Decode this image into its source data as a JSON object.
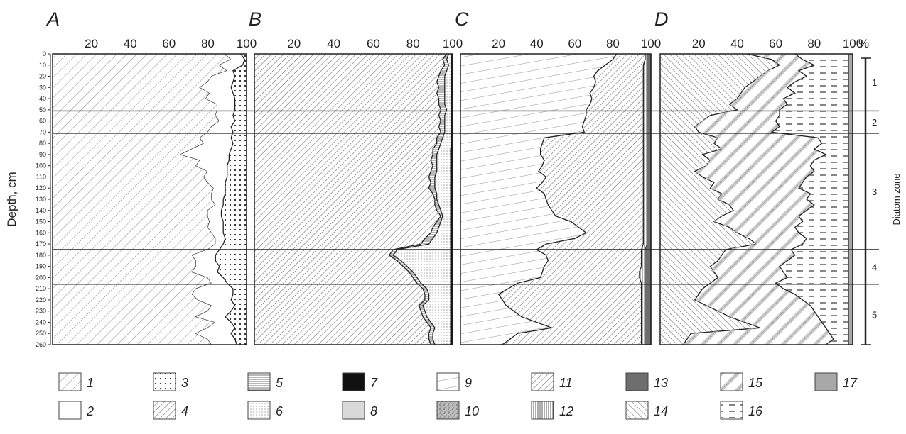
{
  "chart_data": {
    "type": "area",
    "subtype": "stratigraphic stacked-percentage diagram",
    "ylabel": "Depth, cm",
    "y_ticks": [
      "0",
      "10",
      "20",
      "30",
      "40",
      "50",
      "60",
      "70",
      "80",
      "90",
      "100",
      "110",
      "120",
      "130",
      "140",
      "150",
      "160",
      "170",
      "180",
      "190",
      "200",
      "210",
      "220",
      "230",
      "240",
      "250",
      "260"
    ],
    "ylim": [
      0,
      260
    ],
    "xlim": [
      0,
      100
    ],
    "x_ticks": [
      "20",
      "40",
      "60",
      "80",
      "100"
    ],
    "percent_symbol": "%",
    "zone_axis_label": "Diatom zone",
    "zone_boundaries": [
      51,
      71,
      175,
      206
    ],
    "zones": [
      {
        "label": "1",
        "range": [
          0,
          51
        ]
      },
      {
        "label": "2",
        "range": [
          51,
          71
        ]
      },
      {
        "label": "3",
        "range": [
          71,
          175
        ]
      },
      {
        "label": "4",
        "range": [
          175,
          206
        ]
      },
      {
        "label": "5",
        "range": [
          206,
          260
        ]
      }
    ],
    "depths": [
      0,
      5,
      10,
      15,
      20,
      25,
      30,
      35,
      40,
      45,
      50,
      55,
      60,
      65,
      70,
      75,
      80,
      85,
      90,
      95,
      100,
      105,
      110,
      115,
      120,
      125,
      130,
      135,
      140,
      145,
      150,
      155,
      160,
      165,
      170,
      175,
      180,
      185,
      190,
      195,
      200,
      205,
      210,
      215,
      220,
      225,
      230,
      235,
      240,
      245,
      250,
      255,
      260
    ],
    "panels": [
      {
        "letter": "A",
        "series": [
          {
            "legend": "1",
            "cumulative": [
              89,
              92,
              86,
              90,
              82,
              80,
              76,
              81,
              79,
              85,
              85,
              84,
              86,
              82,
              80,
              76,
              78,
              72,
              66,
              76,
              74,
              80,
              78,
              80,
              83,
              82,
              82,
              84,
              80,
              80,
              81,
              80,
              82,
              84,
              84,
              80,
              72,
              74,
              74,
              72,
              80,
              82,
              74,
              72,
              75,
              82,
              80,
              74,
              84,
              80,
              74,
              80,
              82
            ]
          },
          {
            "legend": "2",
            "cumulative": [
              97,
              99,
              98,
              93,
              94,
              93,
              92,
              93,
              94,
              94,
              94,
              93,
              94,
              92,
              93,
              92,
              93,
              92,
              91,
              91,
              90,
              90,
              90,
              89,
              89,
              89,
              88,
              88,
              87,
              87,
              88,
              88,
              88,
              89,
              88,
              86,
              84,
              84,
              86,
              85,
              88,
              90,
              93,
              93,
              92,
              94,
              92,
              89,
              92,
              94,
              92,
              94,
              95
            ]
          },
          {
            "legend": "3",
            "cumulative": [
              100,
              100,
              100,
              100,
              100,
              100,
              100,
              100,
              100,
              100,
              100,
              100,
              100,
              100,
              100,
              100,
              100,
              100,
              100,
              100,
              100,
              100,
              100,
              100,
              100,
              100,
              100,
              100,
              100,
              100,
              100,
              100,
              100,
              100,
              100,
              100,
              100,
              100,
              100,
              100,
              100,
              100,
              100,
              100,
              100,
              100,
              100,
              100,
              100,
              100,
              100,
              100,
              100
            ]
          }
        ]
      },
      {
        "letter": "B",
        "series": [
          {
            "legend": "4",
            "cumulative": [
              97,
              95,
              96,
              94,
              93,
              92,
              93,
              92,
              93,
              93,
              94,
              93,
              94,
              93,
              94,
              92,
              92,
              90,
              90,
              89,
              90,
              89,
              88,
              89,
              88,
              90,
              91,
              91,
              92,
              94,
              92,
              90,
              89,
              86,
              84,
              70,
              68,
              72,
              75,
              78,
              80,
              82,
              85,
              86,
              86,
              83,
              84,
              85,
              87,
              89,
              88,
              88,
              89
            ]
          },
          {
            "legend": "5",
            "cumulative": [
              98,
              97,
              98,
              97,
              96,
              96,
              96,
              96,
              96,
              96,
              97,
              96,
              96,
              96,
              96,
              95,
              94,
              93,
              92,
              92,
              92,
              92,
              91,
              91,
              91,
              92,
              92,
              93,
              94,
              95,
              94,
              93,
              92,
              90,
              88,
              72,
              70,
              74,
              77,
              80,
              82,
              84,
              87,
              88,
              88,
              85,
              86,
              87,
              89,
              91,
              90,
              90,
              91
            ]
          },
          {
            "legend": "6",
            "cumulative": [
              99.5,
              99.5,
              99.5,
              99.5,
              99.5,
              99.5,
              99.5,
              99.5,
              99.5,
              99.5,
              99.5,
              99.5,
              99.5,
              99.5,
              99.5,
              99.5,
              99.5,
              99,
              99,
              99,
              99,
              99,
              99,
              99,
              99,
              99,
              99,
              99,
              99,
              99,
              99,
              99,
              99,
              99,
              99,
              99,
              99,
              99,
              99,
              99,
              99,
              99,
              99,
              99,
              99,
              99,
              99,
              99,
              99,
              99,
              99,
              99,
              99
            ]
          },
          {
            "legend": "7",
            "cumulative": [
              100,
              100,
              100,
              100,
              100,
              100,
              100,
              100,
              100,
              100,
              100,
              100,
              100,
              100,
              100,
              100,
              100,
              100,
              100,
              100,
              100,
              100,
              100,
              100,
              100,
              100,
              100,
              100,
              100,
              100,
              100,
              100,
              100,
              100,
              100,
              100,
              100,
              100,
              100,
              100,
              100,
              100,
              100,
              100,
              100,
              100,
              100,
              100,
              100,
              100,
              100,
              100,
              100
            ]
          }
        ]
      },
      {
        "letter": "C",
        "series": [
          {
            "legend": "9",
            "cumulative": [
              82,
              80,
              76,
              72,
              70,
              71,
              70,
              68,
              69,
              68,
              66,
              66,
              65,
              64,
              65,
              44,
              43,
              42,
              42,
              44,
              43,
              41,
              45,
              43,
              40,
              44,
              45,
              46,
              48,
              50,
              58,
              62,
              66,
              60,
              45,
              40,
              45,
              46,
              44,
              43,
              42,
              30,
              25,
              20,
              22,
              24,
              28,
              32,
              40,
              48,
              30,
              26,
              22
            ]
          },
          {
            "legend": "11",
            "cumulative": [
              97,
              97,
              96,
              96,
              96,
              96,
              96,
              96,
              96,
              96,
              96,
              96,
              96,
              96,
              96,
              96,
              96,
              96,
              96,
              96,
              96,
              96,
              96,
              96,
              96,
              96,
              96,
              96,
              96,
              96,
              96,
              96,
              96,
              96,
              96,
              95,
              95,
              95,
              95,
              94,
              94,
              95,
              95,
              95,
              95,
              95,
              95,
              95,
              95,
              95,
              95,
              95,
              95
            ]
          },
          {
            "legend": "12",
            "cumulative": [
              98,
              98,
              98,
              98,
              98,
              98,
              98,
              98,
              98,
              98,
              98,
              98,
              98,
              98,
              98,
              98,
              98,
              98,
              98,
              98,
              98,
              98,
              98,
              98,
              98,
              98,
              98,
              98,
              98,
              98,
              98,
              98,
              98,
              98,
              98,
              97,
              97,
              97,
              97,
              97,
              97,
              97,
              97,
              97,
              97,
              97,
              97,
              97,
              97,
              97,
              97,
              97,
              97
            ]
          },
          {
            "legend": "13",
            "cumulative": [
              100,
              100,
              100,
              100,
              100,
              100,
              100,
              100,
              100,
              100,
              100,
              100,
              100,
              100,
              100,
              100,
              100,
              100,
              100,
              100,
              100,
              100,
              100,
              100,
              100,
              100,
              100,
              100,
              100,
              100,
              100,
              100,
              100,
              100,
              100,
              100,
              100,
              100,
              100,
              100,
              100,
              100,
              100,
              100,
              100,
              100,
              100,
              100,
              100,
              100,
              100,
              100,
              100
            ]
          }
        ]
      },
      {
        "letter": "D",
        "series": [
          {
            "legend": "14",
            "cumulative": [
              45,
              58,
              62,
              56,
              52,
              48,
              44,
              42,
              40,
              36,
              40,
              26,
              22,
              18,
              20,
              30,
              28,
              32,
              22,
              26,
              24,
              18,
              22,
              28,
              26,
              32,
              30,
              36,
              38,
              32,
              28,
              36,
              40,
              46,
              50,
              34,
              32,
              30,
              26,
              28,
              30,
              26,
              22,
              20,
              18,
              24,
              30,
              36,
              44,
              52,
              16,
              14,
              12
            ]
          },
          {
            "legend": "15",
            "cumulative": [
              70,
              74,
              80,
              72,
              76,
              70,
              66,
              70,
              64,
              66,
              62,
              62,
              60,
              62,
              58,
              82,
              84,
              80,
              86,
              80,
              78,
              80,
              76,
              74,
              72,
              78,
              76,
              80,
              76,
              72,
              74,
              70,
              72,
              76,
              74,
              68,
              70,
              66,
              62,
              64,
              66,
              60,
              64,
              70,
              74,
              78,
              80,
              82,
              84,
              86,
              88,
              90,
              86
            ]
          },
          {
            "legend": "16",
            "cumulative": [
              98,
              98,
              98,
              98,
              98,
              98,
              98,
              98,
              98,
              98,
              98,
              98,
              98,
              98,
              98,
              98,
              98,
              98,
              98,
              98,
              98,
              98,
              98,
              98,
              98,
              98,
              98,
              98,
              98,
              98,
              98,
              98,
              98,
              98,
              98,
              98,
              98,
              98,
              98,
              98,
              98,
              98,
              98,
              98,
              98,
              98,
              98,
              98,
              98,
              98,
              98,
              98,
              98
            ]
          },
          {
            "legend": "17",
            "cumulative": [
              100,
              100,
              100,
              100,
              100,
              100,
              100,
              100,
              100,
              100,
              100,
              100,
              100,
              100,
              100,
              100,
              100,
              100,
              100,
              100,
              100,
              100,
              100,
              100,
              100,
              100,
              100,
              100,
              100,
              100,
              100,
              100,
              100,
              100,
              100,
              100,
              100,
              100,
              100,
              100,
              100,
              100,
              100,
              100,
              100,
              100,
              100,
              100,
              100,
              100,
              100,
              100,
              100
            ]
          }
        ]
      }
    ],
    "legend": [
      {
        "id": "1",
        "pattern": "diag-thin"
      },
      {
        "id": "2",
        "pattern": "blank"
      },
      {
        "id": "3",
        "pattern": "dots-sparse"
      },
      {
        "id": "4",
        "pattern": "diag-dense"
      },
      {
        "id": "5",
        "pattern": "horizontal-lines"
      },
      {
        "id": "6",
        "pattern": "dots-fine"
      },
      {
        "id": "7",
        "pattern": "solid-black"
      },
      {
        "id": "8",
        "pattern": "solid-light-grey"
      },
      {
        "id": "9",
        "pattern": "slant-lines"
      },
      {
        "id": "10",
        "pattern": "speckle"
      },
      {
        "id": "11",
        "pattern": "diag-dense"
      },
      {
        "id": "12",
        "pattern": "vertical-lines"
      },
      {
        "id": "13",
        "pattern": "solid-dark-grey"
      },
      {
        "id": "14",
        "pattern": "back-diag"
      },
      {
        "id": "15",
        "pattern": "diag-dotted"
      },
      {
        "id": "16",
        "pattern": "dashes"
      },
      {
        "id": "17",
        "pattern": "solid-mid-grey"
      }
    ],
    "colors": {
      "line": "#222222",
      "dark_grey": "#6e6e6e",
      "mid_grey": "#a8a8a8",
      "light_grey": "#d9d9d9",
      "black": "#111111"
    }
  }
}
